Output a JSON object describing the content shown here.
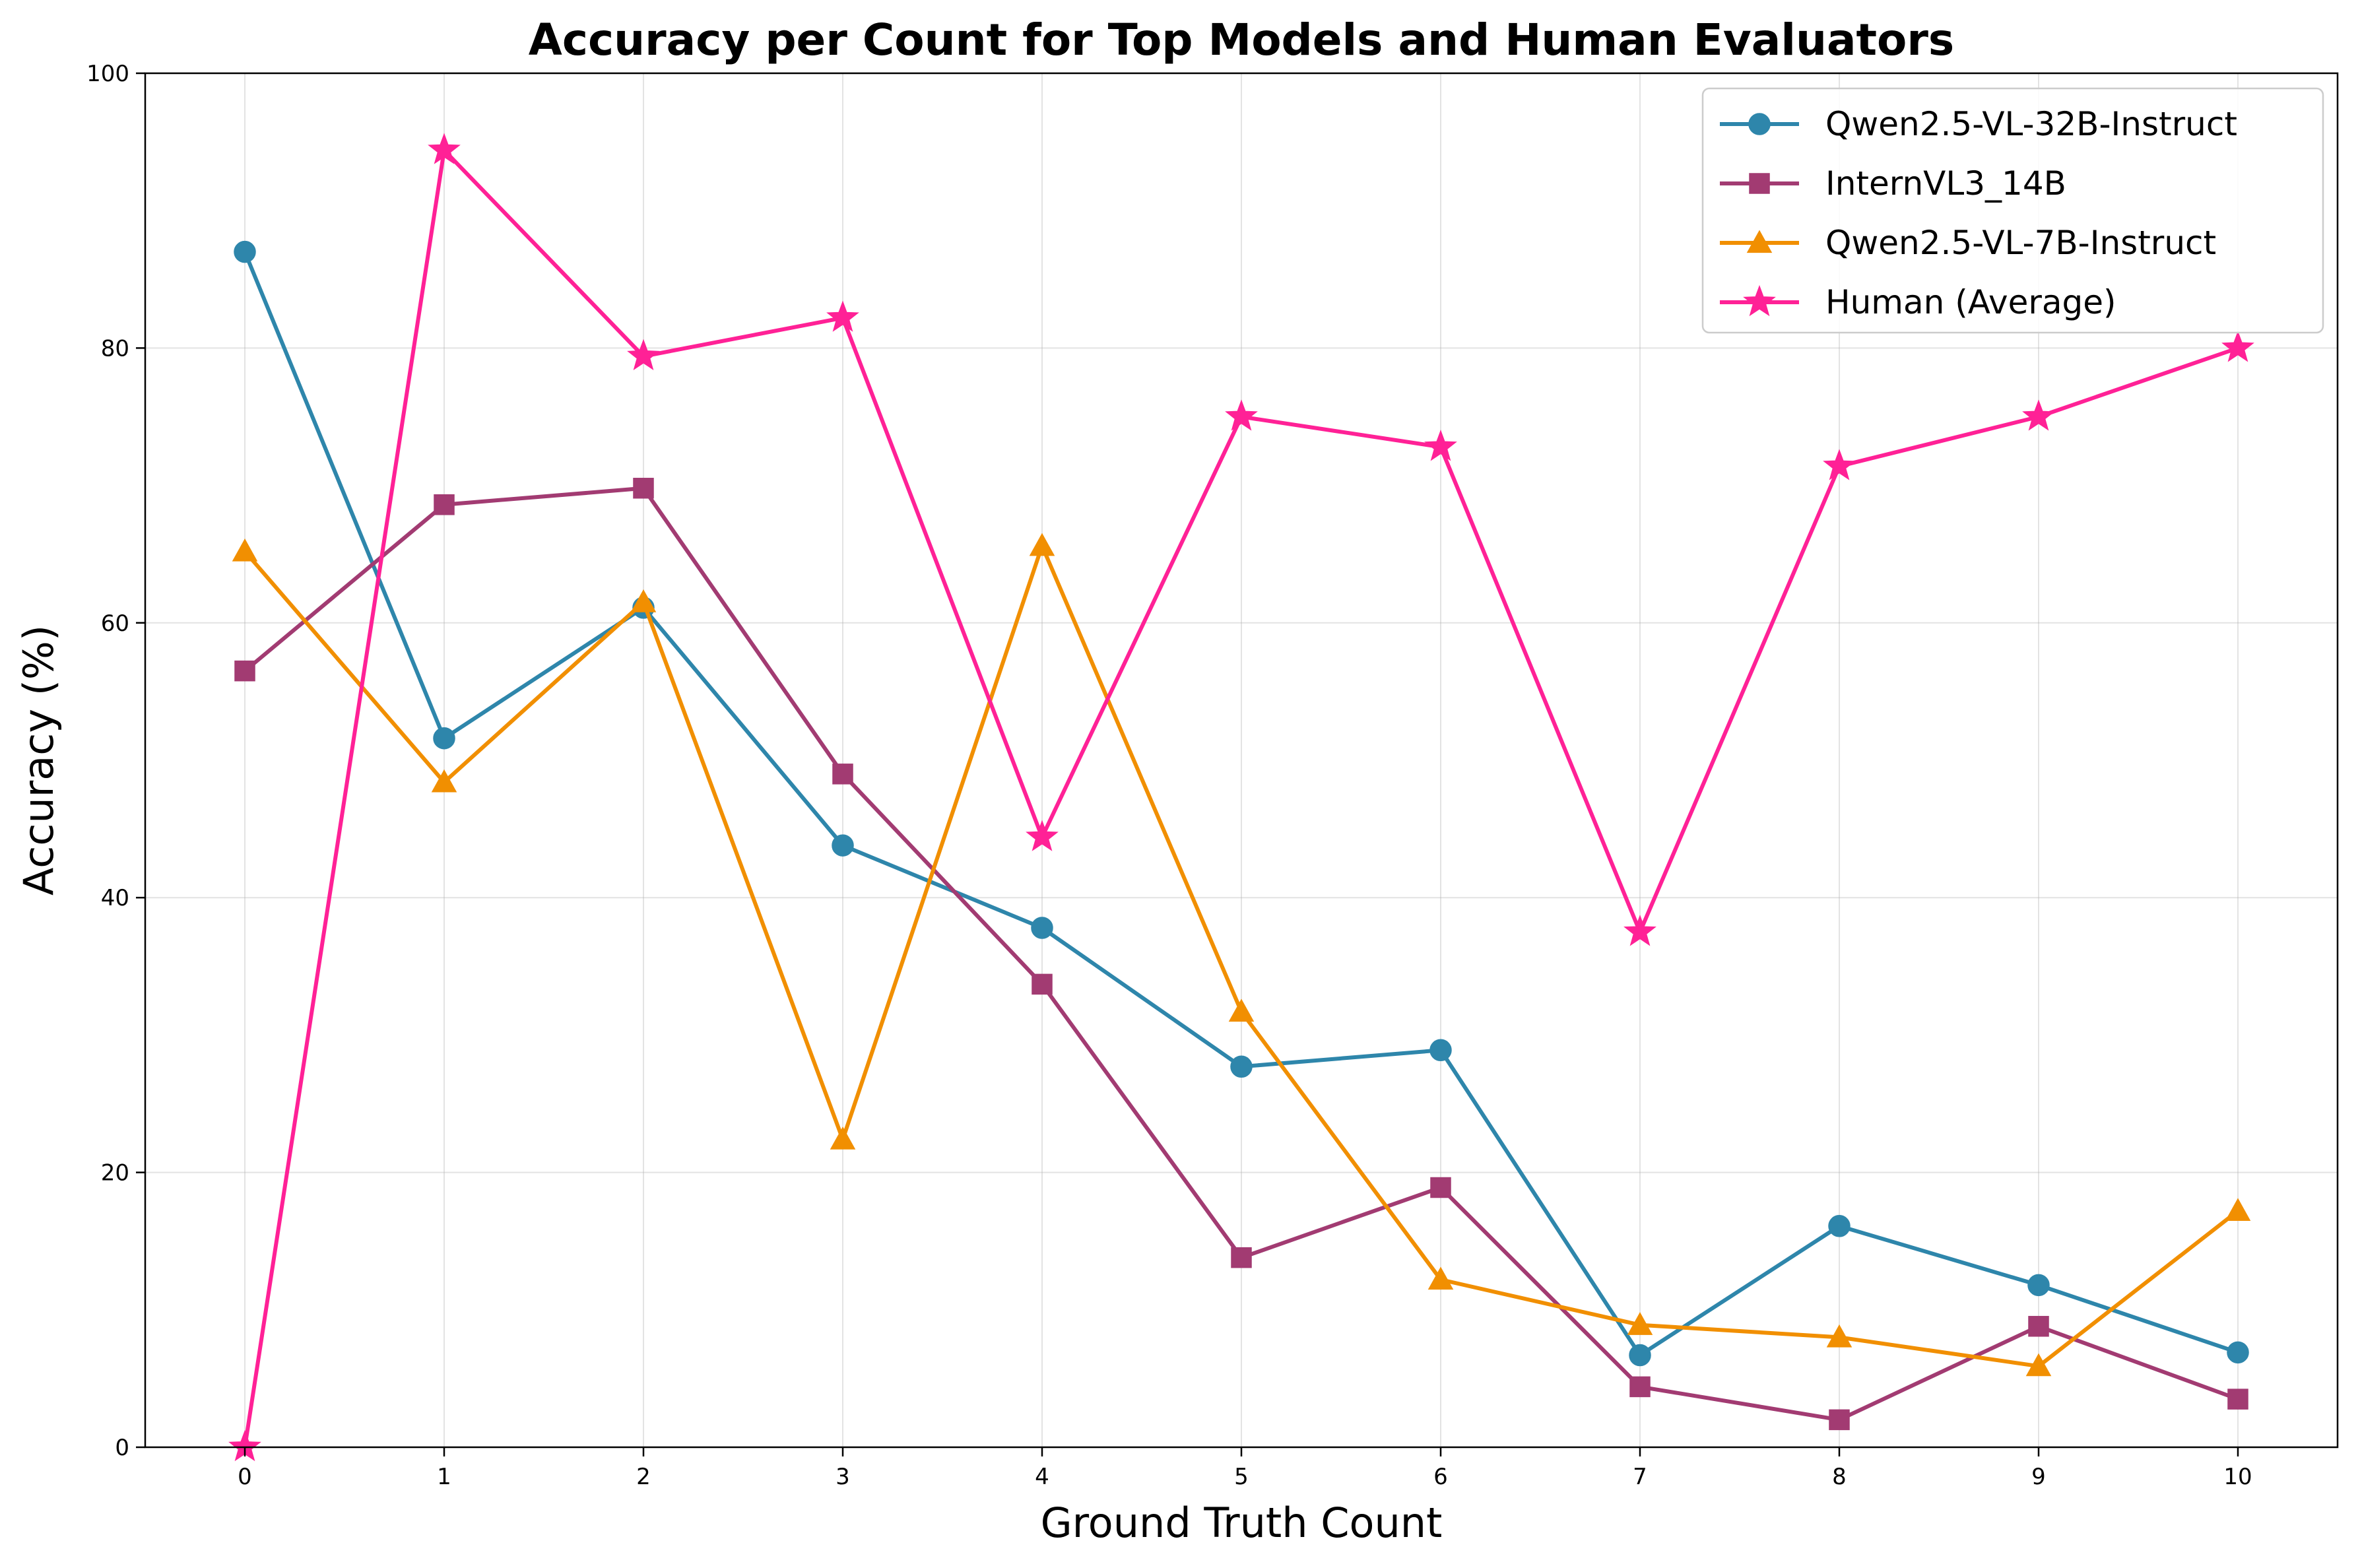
{
  "chart_data": {
    "type": "line",
    "title": "Accuracy per Count for Top Models and Human Evaluators",
    "xlabel": "Ground Truth Count",
    "ylabel": "Accuracy (%)",
    "x": [
      0,
      1,
      2,
      3,
      4,
      5,
      6,
      7,
      8,
      9,
      10
    ],
    "xlim": [
      -0.5,
      10.5
    ],
    "ylim": [
      0,
      100
    ],
    "xticks": [
      "0",
      "1",
      "2",
      "3",
      "4",
      "5",
      "6",
      "7",
      "8",
      "9",
      "10"
    ],
    "yticks": [
      "0",
      "20",
      "40",
      "60",
      "80",
      "100"
    ],
    "grid": true,
    "legend_position": "top-right",
    "series": [
      {
        "name": "Qwen2.5-VL-32B-Instruct",
        "color": "#2e86ab",
        "marker": "circle",
        "values": [
          87.0,
          51.6,
          61.1,
          43.8,
          37.8,
          27.7,
          28.9,
          6.7,
          16.1,
          11.8,
          6.9
        ]
      },
      {
        "name": "InternVL3_14B",
        "color": "#a23b72",
        "marker": "square",
        "values": [
          56.5,
          68.6,
          69.8,
          49.0,
          33.7,
          13.8,
          18.9,
          4.4,
          2.0,
          8.8,
          3.5
        ]
      },
      {
        "name": "Qwen2.5-VL-7B-Instruct",
        "color": "#f18f01",
        "marker": "triangle",
        "values": [
          65.2,
          48.4,
          61.5,
          22.4,
          65.6,
          31.7,
          12.2,
          8.9,
          8.0,
          5.9,
          17.2
        ]
      },
      {
        "name": "Human (Average)",
        "color": "#ff2196",
        "marker": "star",
        "values": [
          0.0,
          94.4,
          79.4,
          82.2,
          44.4,
          75.0,
          72.8,
          37.5,
          71.4,
          75.0,
          80.0
        ]
      }
    ]
  }
}
